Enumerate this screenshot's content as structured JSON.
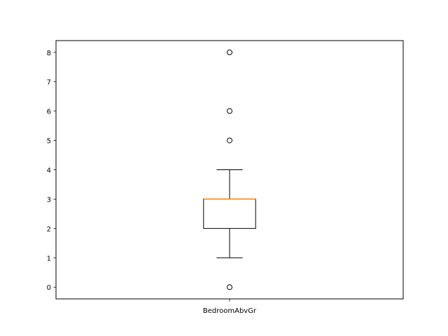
{
  "chart_data": {
    "type": "box",
    "title": "",
    "xlabel": "",
    "ylabel": "",
    "categories": [
      "BedroomAbvGr"
    ],
    "ylim": [
      -0.4,
      8.4
    ],
    "yticks": [
      0,
      1,
      2,
      3,
      4,
      5,
      6,
      7,
      8
    ],
    "grid": false,
    "boxes": [
      {
        "label": "BedroomAbvGr",
        "whisker_low": 1,
        "q1": 2,
        "median": 3,
        "q3": 3,
        "whisker_high": 4,
        "outliers": [
          0,
          5,
          6,
          8
        ]
      }
    ],
    "colors": {
      "box": "#000000",
      "median": "#ff7f0e",
      "outlier_edge": "#000000"
    }
  }
}
